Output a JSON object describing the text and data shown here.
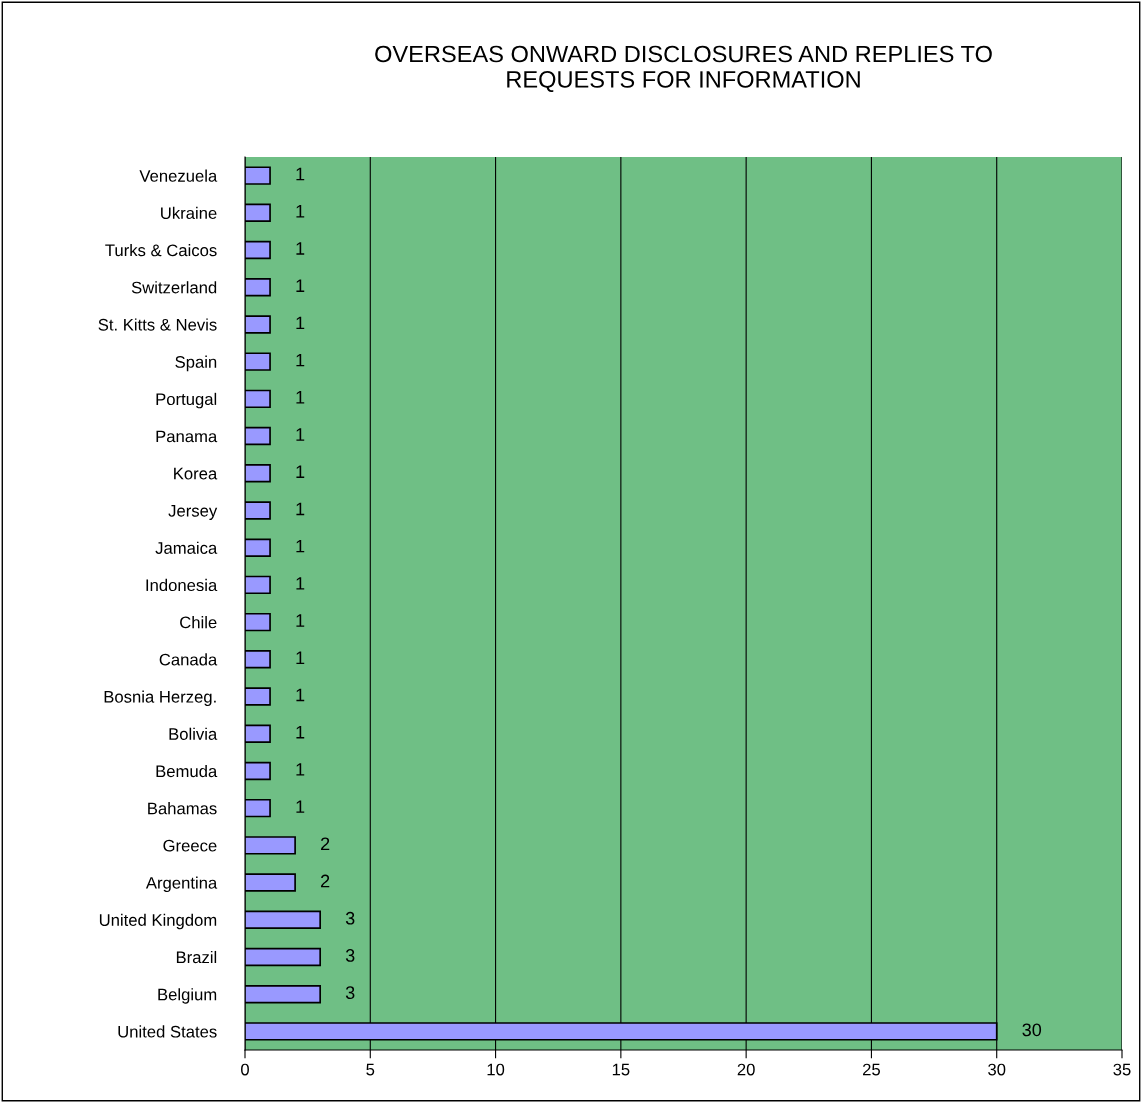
{
  "chart_data": {
    "type": "bar",
    "orientation": "horizontal",
    "title": "OVERSEAS ONWARD DISCLOSURES AND REPLIES TO\nREQUESTS FOR INFORMATION",
    "categories": [
      "Venezuela",
      "Ukraine",
      "Turks & Caicos",
      "Switzerland",
      "St. Kitts & Nevis",
      "Spain",
      "Portugal",
      "Panama",
      "Korea",
      "Jersey",
      "Jamaica",
      "Indonesia",
      "Chile",
      "Canada",
      "Bosnia Herzeg.",
      "Bolivia",
      "Bemuda",
      "Bahamas",
      "Greece",
      "Argentina",
      "United Kingdom",
      "Brazil",
      "Belgium",
      "United States"
    ],
    "values": [
      1,
      1,
      1,
      1,
      1,
      1,
      1,
      1,
      1,
      1,
      1,
      1,
      1,
      1,
      1,
      1,
      1,
      1,
      2,
      2,
      3,
      3,
      3,
      30
    ],
    "color": "#9999ff",
    "xlim": [
      0,
      35
    ],
    "xticks": [
      0,
      5,
      10,
      15,
      20,
      25,
      30,
      35
    ],
    "grid": "x",
    "data_labels": true,
    "legend": false
  }
}
